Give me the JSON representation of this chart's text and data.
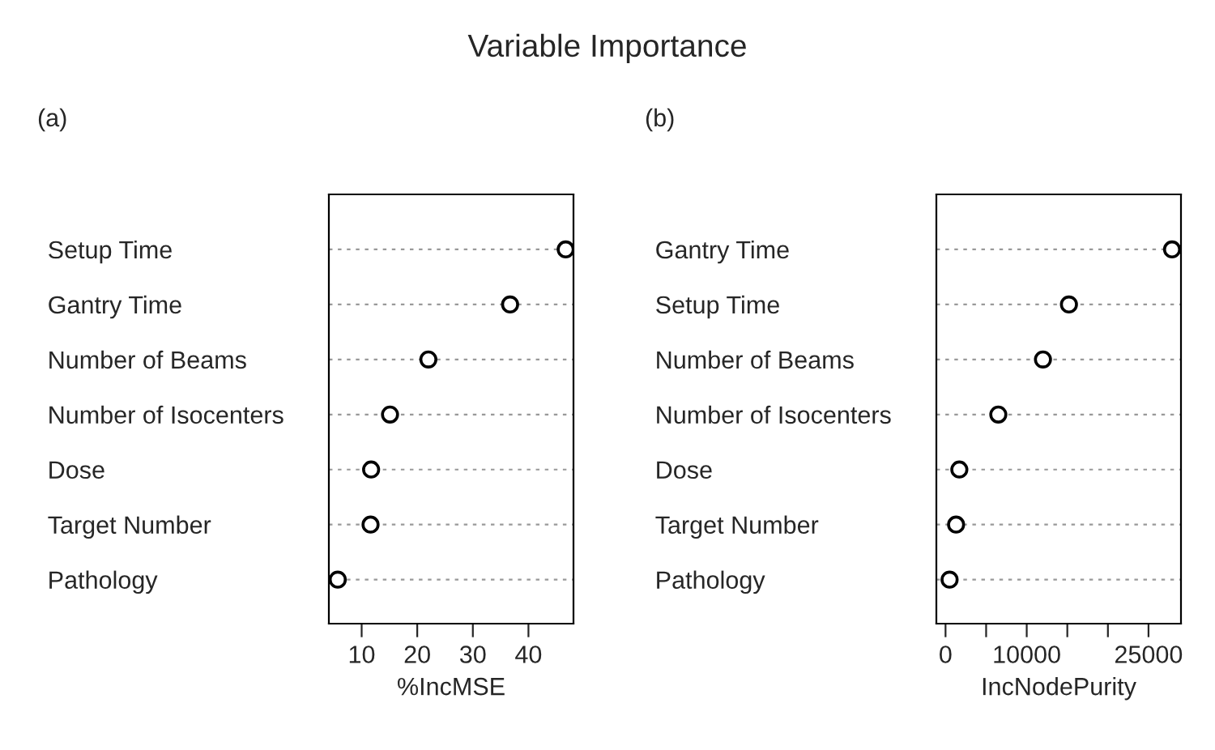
{
  "chart_data": [
    {
      "type": "scatter",
      "title": "Variable Importance",
      "subtitle": "(a)",
      "orientation": "horizontal",
      "xlabel": "%IncMSE",
      "categories": [
        "Setup Time",
        "Gantry Time",
        "Number of Beams",
        "Number of Isocenters",
        "Dose",
        "Target Number",
        "Pathology"
      ],
      "series": [
        {
          "color": "#000000",
          "values": [
            46.7,
            36.7,
            22.0,
            15.1,
            11.7,
            11.6,
            5.7
          ]
        }
      ],
      "xlim": [
        4.1,
        48.1
      ],
      "xticks": [
        10,
        20,
        30,
        40
      ],
      "grid": "y",
      "marker": "circle"
    },
    {
      "type": "scatter",
      "subtitle": "(b)",
      "orientation": "horizontal",
      "xlabel": "IncNodePurity",
      "categories": [
        "Gantry Time",
        "Setup Time",
        "Number of Beams",
        "Number of Isocenters",
        "Dose",
        "Target Number",
        "Pathology"
      ],
      "series": [
        {
          "color": "#000000",
          "values": [
            27900,
            15200,
            12000,
            6500,
            1700,
            1300,
            500
          ]
        }
      ],
      "xlim": [
        -1130,
        29000
      ],
      "xticks": [
        0,
        {
          "value": 5000,
          "label": null
        },
        10000,
        {
          "value": 15000,
          "label": null
        },
        {
          "value": 20000,
          "label": null
        },
        25000
      ],
      "grid": "y",
      "marker": "circle"
    }
  ]
}
